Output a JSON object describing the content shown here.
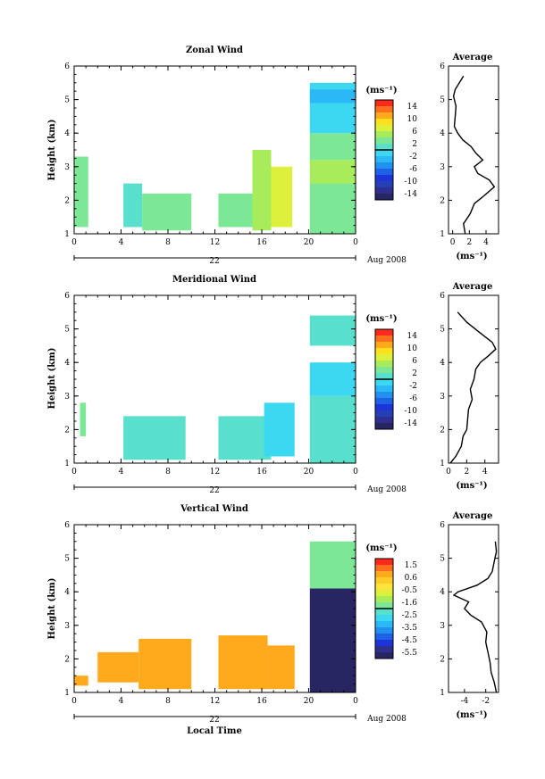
{
  "x_axis": {
    "ticks": [
      "0",
      "4",
      "8",
      "12",
      "16",
      "20",
      "0"
    ],
    "day_label": "22",
    "month_label": "Aug 2008",
    "xlabel": "Local Time"
  },
  "y_axis": {
    "ylabel": "Height (km)",
    "ticks": [
      "1",
      "2",
      "3",
      "4",
      "5",
      "6"
    ]
  },
  "colorbar_unit": "(ms⁻¹)",
  "average_title": "Average",
  "panels": [
    {
      "title": "Zonal Wind",
      "colorbar": {
        "labels": [
          "14",
          "10",
          "6",
          "2",
          "-2",
          "-6",
          "-10",
          "-14"
        ],
        "colors": [
          "#ff2a1c",
          "#ff6e1c",
          "#ffaa1c",
          "#ffe01c",
          "#dcf03c",
          "#a8ec5c",
          "#7ce896",
          "#58e0cc",
          "#3cd8f2",
          "#2ab8f6",
          "#2290ef",
          "#1e60e6",
          "#1b35d9",
          "#263fb6",
          "#2e2f8e",
          "#282563"
        ]
      },
      "average": {
        "xticks": [
          "0",
          "2",
          "4"
        ],
        "xunit": "(ms⁻¹)"
      }
    },
    {
      "title": "Meridional Wind",
      "colorbar": {
        "labels": [
          "14",
          "10",
          "6",
          "2",
          "-2",
          "-6",
          "-10",
          "-14"
        ],
        "colors": [
          "#ff2a1c",
          "#ff6e1c",
          "#ffaa1c",
          "#ffe01c",
          "#dcf03c",
          "#a8ec5c",
          "#7ce896",
          "#58e0cc",
          "#3cd8f2",
          "#2ab8f6",
          "#2290ef",
          "#1e60e6",
          "#1b35d9",
          "#263fb6",
          "#2e2f8e",
          "#282563"
        ]
      },
      "average": {
        "xticks": [
          "0",
          "2",
          "4"
        ],
        "xunit": "(ms⁻¹)"
      }
    },
    {
      "title": "Vertical Wind",
      "colorbar": {
        "labels": [
          "1.5",
          "0.6",
          "-0.5",
          "-1.6",
          "-2.5",
          "-3.5",
          "-4.5",
          "-5.5"
        ],
        "colors": [
          "#ff2a1c",
          "#ff6e1c",
          "#ffaa1c",
          "#ffcc28",
          "#ffe43c",
          "#dcf03c",
          "#a8ec5c",
          "#7ce896",
          "#58e0cc",
          "#3cd8f2",
          "#2ab8f6",
          "#2290ef",
          "#1e60e6",
          "#1b35d9",
          "#2e2f8e",
          "#282563"
        ]
      },
      "average": {
        "xticks": [
          "-4",
          "-2"
        ],
        "xunit": "(ms⁻¹)"
      }
    }
  ],
  "chart_data": [
    {
      "type": "heatmap",
      "title": "Zonal Wind",
      "xlabel": "",
      "ylabel": "Height (km)",
      "xlim_hours": [
        0,
        24
      ],
      "ylim": [
        1,
        6
      ],
      "colorbar_range": [
        -14,
        14
      ],
      "regions": [
        {
          "t": [
            0,
            1.2
          ],
          "h": [
            1.2,
            3.3
          ],
          "v": 3
        },
        {
          "t": [
            4.2,
            5.8
          ],
          "h": [
            1.2,
            2.5
          ],
          "v": 1
        },
        {
          "t": [
            5.8,
            10
          ],
          "h": [
            1.1,
            2.2
          ],
          "v": 2
        },
        {
          "t": [
            12.3,
            15.2
          ],
          "h": [
            1.2,
            2.2
          ],
          "v": 3
        },
        {
          "t": [
            15.2,
            16.8
          ],
          "h": [
            1.1,
            3.5
          ],
          "v": 4
        },
        {
          "t": [
            16.8,
            18.6
          ],
          "h": [
            1.2,
            3.0
          ],
          "v": 6
        },
        {
          "t": [
            20.1,
            24
          ],
          "h": [
            1.0,
            2.5
          ],
          "v": 2
        },
        {
          "t": [
            20.1,
            24
          ],
          "h": [
            2.5,
            3.2
          ],
          "v": 5
        },
        {
          "t": [
            20.1,
            24
          ],
          "h": [
            3.2,
            4.0
          ],
          "v": 2
        },
        {
          "t": [
            20.1,
            24
          ],
          "h": [
            4.0,
            5.5
          ],
          "v": 0
        },
        {
          "t": [
            20.1,
            24
          ],
          "h": [
            4.9,
            5.3
          ],
          "v": -2
        }
      ],
      "average_profile": {
        "height": [
          1.0,
          1.3,
          1.6,
          1.9,
          2.1,
          2.4,
          2.6,
          2.8,
          3.0,
          3.2,
          3.4,
          3.6,
          3.8,
          4.0,
          4.2,
          4.5,
          4.8,
          5.1,
          5.3,
          5.5,
          5.7
        ],
        "value": [
          1.5,
          1.3,
          2.1,
          2.6,
          3.6,
          5.0,
          4.4,
          3.0,
          2.6,
          3.6,
          2.8,
          2.2,
          1.2,
          0.6,
          0.2,
          0.3,
          0.4,
          0.1,
          0.3,
          0.8,
          1.3
        ],
        "xlim": [
          -0.5,
          5.5
        ]
      }
    },
    {
      "type": "heatmap",
      "title": "Meridional Wind",
      "xlabel": "",
      "ylabel": "Height (km)",
      "xlim_hours": [
        0,
        24
      ],
      "ylim": [
        1,
        6
      ],
      "colorbar_range": [
        -14,
        14
      ],
      "regions": [
        {
          "t": [
            0.5,
            1.0
          ],
          "h": [
            1.8,
            2.8
          ],
          "v": 2
        },
        {
          "t": [
            4.2,
            9.5
          ],
          "h": [
            1.1,
            2.4
          ],
          "v": 1
        },
        {
          "t": [
            12.3,
            16.8
          ],
          "h": [
            1.1,
            2.4
          ],
          "v": 1
        },
        {
          "t": [
            16.2,
            18.8
          ],
          "h": [
            1.2,
            2.8
          ],
          "v": 0
        },
        {
          "t": [
            20.1,
            24
          ],
          "h": [
            1.0,
            3.0
          ],
          "v": 1
        },
        {
          "t": [
            20.1,
            24
          ],
          "h": [
            3.0,
            4.0
          ],
          "v": 0
        },
        {
          "t": [
            20.1,
            24
          ],
          "h": [
            4.5,
            5.4
          ],
          "v": 1
        }
      ],
      "average_profile": {
        "height": [
          1.0,
          1.2,
          1.5,
          1.8,
          2.0,
          2.3,
          2.6,
          2.9,
          3.2,
          3.5,
          3.8,
          4.0,
          4.2,
          4.4,
          4.6,
          4.9,
          5.2,
          5.5
        ],
        "value": [
          0.2,
          0.8,
          1.4,
          1.6,
          2.0,
          2.1,
          2.2,
          2.6,
          2.4,
          2.8,
          3.0,
          3.5,
          4.4,
          5.2,
          4.8,
          3.4,
          2.0,
          1.0
        ],
        "xlim": [
          0,
          5.5
        ]
      }
    },
    {
      "type": "heatmap",
      "title": "Vertical Wind",
      "xlabel": "Local Time",
      "ylabel": "Height (km)",
      "xlim_hours": [
        0,
        24
      ],
      "ylim": [
        1,
        6
      ],
      "colorbar_range": [
        -5.5,
        1.5
      ],
      "regions": [
        {
          "t": [
            0,
            1.2
          ],
          "h": [
            1.2,
            1.5
          ],
          "v": 0.2
        },
        {
          "t": [
            2.0,
            5.5
          ],
          "h": [
            1.3,
            2.2
          ],
          "v": 0.4
        },
        {
          "t": [
            5.5,
            10.0
          ],
          "h": [
            1.1,
            2.6
          ],
          "v": 0.5
        },
        {
          "t": [
            12.3,
            16.5
          ],
          "h": [
            1.1,
            2.7
          ],
          "v": 0.6
        },
        {
          "t": [
            16.5,
            18.8
          ],
          "h": [
            1.1,
            2.4
          ],
          "v": 0.4
        },
        {
          "t": [
            20.1,
            24
          ],
          "h": [
            1.0,
            4.1
          ],
          "v": -5.4
        },
        {
          "t": [
            20.1,
            24
          ],
          "h": [
            4.1,
            5.5
          ],
          "v": -1.8
        }
      ],
      "average_profile": {
        "height": [
          1.0,
          1.3,
          1.6,
          1.9,
          2.2,
          2.5,
          2.8,
          3.1,
          3.3,
          3.5,
          3.7,
          3.9,
          4.0,
          4.2,
          4.4,
          4.6,
          4.9,
          5.2,
          5.5
        ],
        "value": [
          -1.0,
          -1.2,
          -1.5,
          -1.6,
          -1.8,
          -2.0,
          -1.9,
          -2.4,
          -3.4,
          -4.0,
          -3.6,
          -5.0,
          -4.6,
          -2.8,
          -1.8,
          -1.4,
          -1.2,
          -1.0,
          -1.1
        ],
        "xlim": [
          -5.5,
          -0.8
        ]
      }
    }
  ]
}
